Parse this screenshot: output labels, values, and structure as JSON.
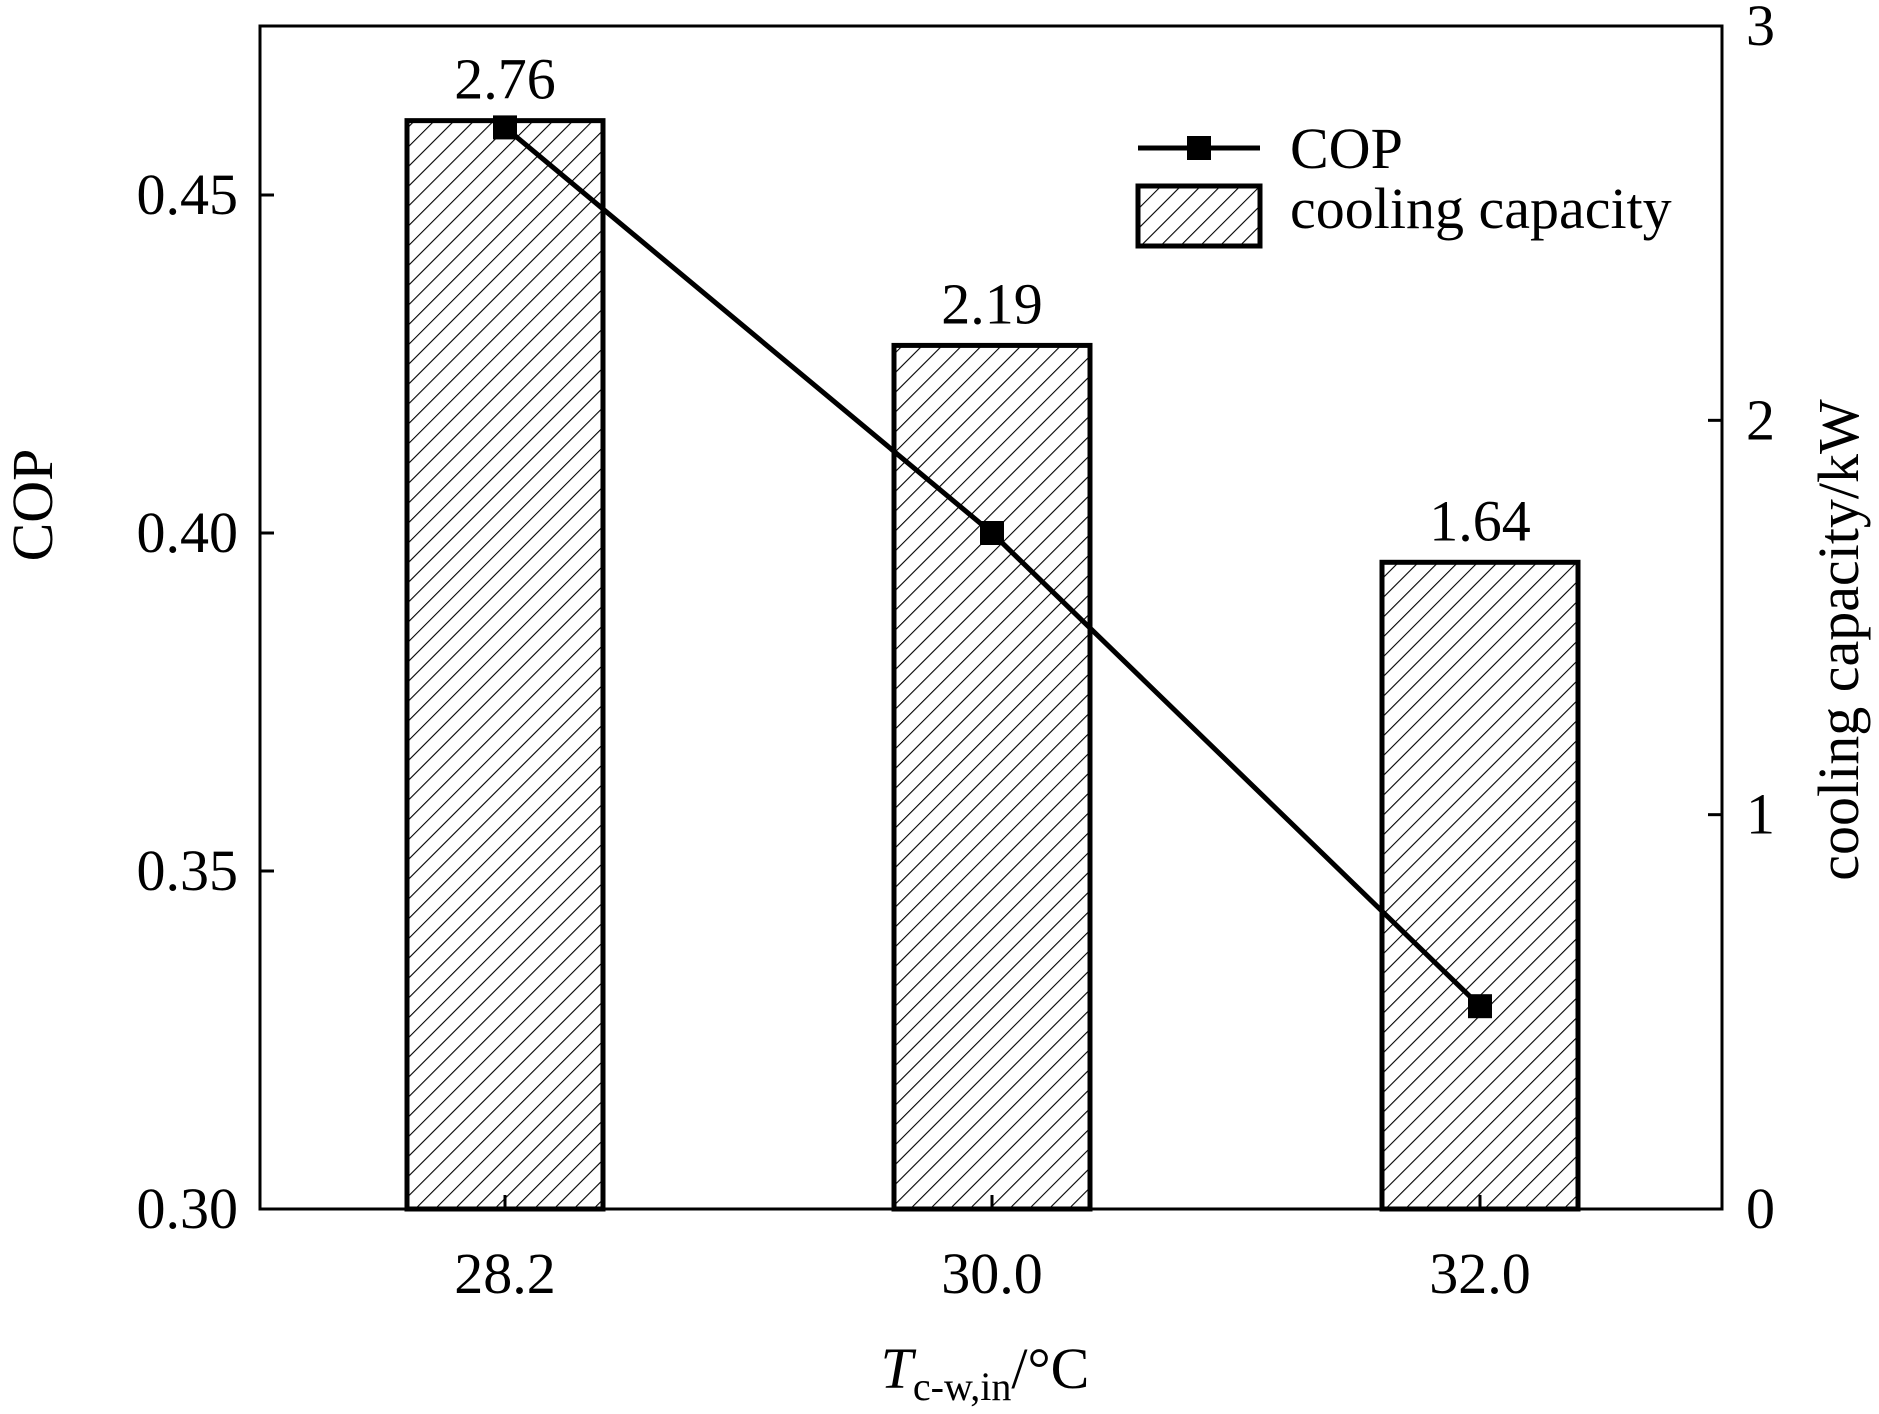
{
  "chart_data": {
    "type": "bar+line",
    "categories": [
      "28.2",
      "30.0",
      "32.0"
    ],
    "series": [
      {
        "name": "cooling capacity",
        "kind": "bar",
        "axis": "right",
        "values": [
          2.76,
          2.19,
          1.64
        ],
        "labels": [
          "2.76",
          "2.19",
          "1.64"
        ],
        "pattern": "diagonal-hatch"
      },
      {
        "name": "COP",
        "kind": "line",
        "axis": "left",
        "marker": "square",
        "values": [
          0.46,
          0.4,
          0.33
        ]
      }
    ],
    "left_axis": {
      "label": "COP",
      "ylim": [
        0.3,
        0.475
      ],
      "ticks": [
        0.3,
        0.35,
        0.4,
        0.45
      ],
      "tick_labels": [
        "0.30",
        "0.35",
        "0.40",
        "0.45"
      ]
    },
    "right_axis": {
      "label": "cooling capacity/kW",
      "ylim": [
        0,
        3
      ],
      "ticks": [
        0,
        1,
        2,
        3
      ],
      "tick_labels": [
        "0",
        "1",
        "2",
        "3"
      ]
    },
    "x_axis": {
      "label_main": "T",
      "label_sub": "c-w,in",
      "label_unit": "/°C"
    },
    "legend": {
      "position": "top-right",
      "entries": [
        "COP",
        "cooling capacity"
      ]
    },
    "colors": {
      "stroke": "#000000",
      "fill": "#ffffff"
    }
  }
}
